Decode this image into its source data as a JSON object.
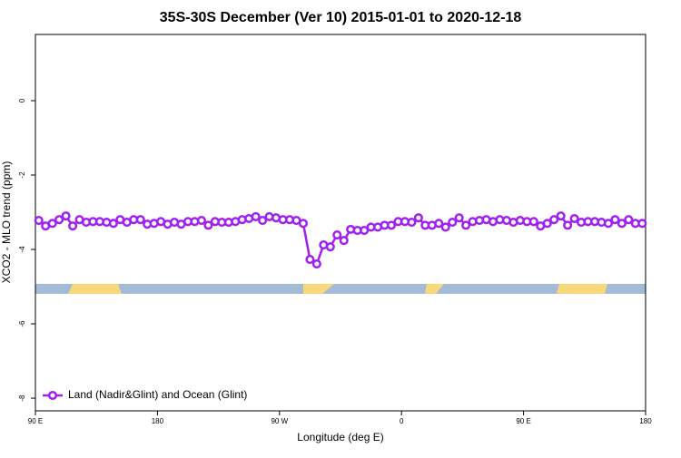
{
  "chart_data": {
    "type": "line",
    "title": "35S-30S December (Ver 10)   2015-01-01 to 2020-12-18",
    "xlabel": "Longitude (deg E)",
    "ylabel": "XCO2 - MLO trend (ppm)",
    "x": [
      92.5,
      97.5,
      102.5,
      107.5,
      112.5,
      117.5,
      122.5,
      127.5,
      132.5,
      137.5,
      142.5,
      147.5,
      152.5,
      157.5,
      162.5,
      167.5,
      172.5,
      177.5,
      182.5,
      187.5,
      192.5,
      197.5,
      202.5,
      207.5,
      212.5,
      217.5,
      222.5,
      227.5,
      232.5,
      237.5,
      242.5,
      247.5,
      252.5,
      257.5,
      262.5,
      267.5,
      272.5,
      277.5,
      282.5,
      287.5,
      292.5,
      297.5,
      302.5,
      307.5,
      312.5,
      317.5,
      322.5,
      327.5,
      332.5,
      337.5,
      342.5,
      347.5,
      352.5,
      357.5,
      362.5,
      367.5,
      372.5,
      377.5,
      382.5,
      387.5,
      392.5,
      397.5,
      402.5,
      407.5,
      412.5,
      417.5,
      422.5,
      427.5,
      432.5,
      437.5,
      442.5,
      447.5,
      452.5,
      457.5,
      462.5,
      467.5,
      472.5,
      477.5,
      482.5,
      487.5,
      492.5,
      497.5,
      502.5,
      507.5,
      512.5,
      517.5,
      522.5,
      527.5,
      532.5,
      537.5
    ],
    "series": [
      {
        "name": "Land (Nadir&Glint) and Ocean (Glint)",
        "color": "#a020f0",
        "values": [
          -3.22,
          -3.37,
          -3.3,
          -3.2,
          -3.1,
          -3.37,
          -3.2,
          -3.27,
          -3.25,
          -3.25,
          -3.27,
          -3.3,
          -3.2,
          -3.27,
          -3.2,
          -3.2,
          -3.32,
          -3.3,
          -3.25,
          -3.32,
          -3.27,
          -3.32,
          -3.25,
          -3.25,
          -3.22,
          -3.35,
          -3.25,
          -3.27,
          -3.27,
          -3.25,
          -3.2,
          -3.17,
          -3.12,
          -3.22,
          -3.12,
          -3.15,
          -3.2,
          -3.2,
          -3.22,
          -3.3,
          -4.27,
          -4.39,
          -3.88,
          -3.93,
          -3.61,
          -3.76,
          -3.46,
          -3.49,
          -3.49,
          -3.4,
          -3.4,
          -3.35,
          -3.35,
          -3.25,
          -3.25,
          -3.27,
          -3.15,
          -3.35,
          -3.35,
          -3.3,
          -3.4,
          -3.27,
          -3.15,
          -3.35,
          -3.25,
          -3.22,
          -3.2,
          -3.25,
          -3.2,
          -3.22,
          -3.27,
          -3.22,
          -3.25,
          -3.25,
          -3.37,
          -3.3,
          -3.2,
          -3.1,
          -3.35,
          -3.17,
          -3.27,
          -3.25,
          -3.25,
          -3.27,
          -3.3,
          -3.2,
          -3.3,
          -3.2,
          -3.3,
          -3.3
        ]
      }
    ],
    "xlim": [
      90,
      540
    ],
    "xticks": [
      {
        "value": 90,
        "label": "90 E"
      },
      {
        "value": 180,
        "label": "180"
      },
      {
        "value": 270,
        "label": "90 W"
      },
      {
        "value": 360,
        "label": "0"
      },
      {
        "value": 450,
        "label": "90 E"
      },
      {
        "value": 540,
        "label": "180"
      }
    ],
    "ylim": [
      -8.34,
      1.78
    ],
    "yticks": [
      -8,
      -6,
      -4,
      -2,
      0
    ],
    "legend": "bottom-left"
  }
}
